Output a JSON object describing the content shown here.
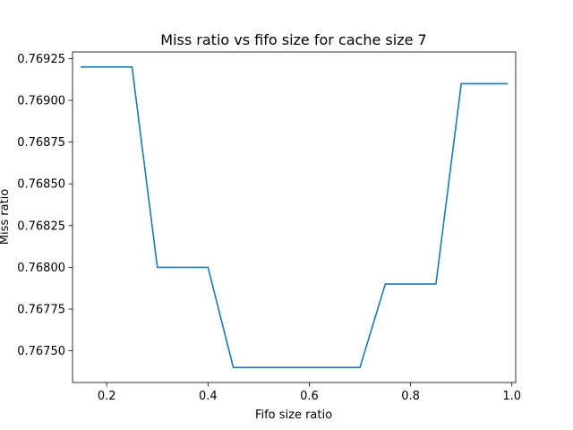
{
  "chart_data": {
    "type": "line",
    "title": "Miss ratio vs fifo size for cache size 7",
    "xlabel": "Fifo size ratio",
    "ylabel": "Miss ratio",
    "xlim": [
      0.1325,
      1.0075
    ],
    "ylim": [
      0.76731,
      0.76929
    ],
    "xticks": [
      0.2,
      0.4,
      0.6,
      0.8,
      1.0
    ],
    "xtick_labels": [
      "0.2",
      "0.4",
      "0.6",
      "0.8",
      "1.0"
    ],
    "yticks": [
      0.7675,
      0.76775,
      0.768,
      0.76825,
      0.7685,
      0.76875,
      0.769,
      0.76925
    ],
    "ytick_labels": [
      "0.76750",
      "0.76775",
      "0.76800",
      "0.76825",
      "0.76850",
      "0.76875",
      "0.76900",
      "0.76925"
    ],
    "grid": false,
    "series": [
      {
        "color": "#1f77b4",
        "x": [
          0.15,
          0.2,
          0.25,
          0.3,
          0.35,
          0.4,
          0.45,
          0.5,
          0.55,
          0.6,
          0.65,
          0.7,
          0.75,
          0.8,
          0.85,
          0.9,
          0.95,
          0.99
        ],
        "y": [
          0.7692,
          0.7692,
          0.7692,
          0.768,
          0.768,
          0.768,
          0.7674,
          0.7674,
          0.7674,
          0.7674,
          0.7674,
          0.7674,
          0.7679,
          0.7679,
          0.7679,
          0.7691,
          0.7691,
          0.7691
        ]
      }
    ]
  }
}
